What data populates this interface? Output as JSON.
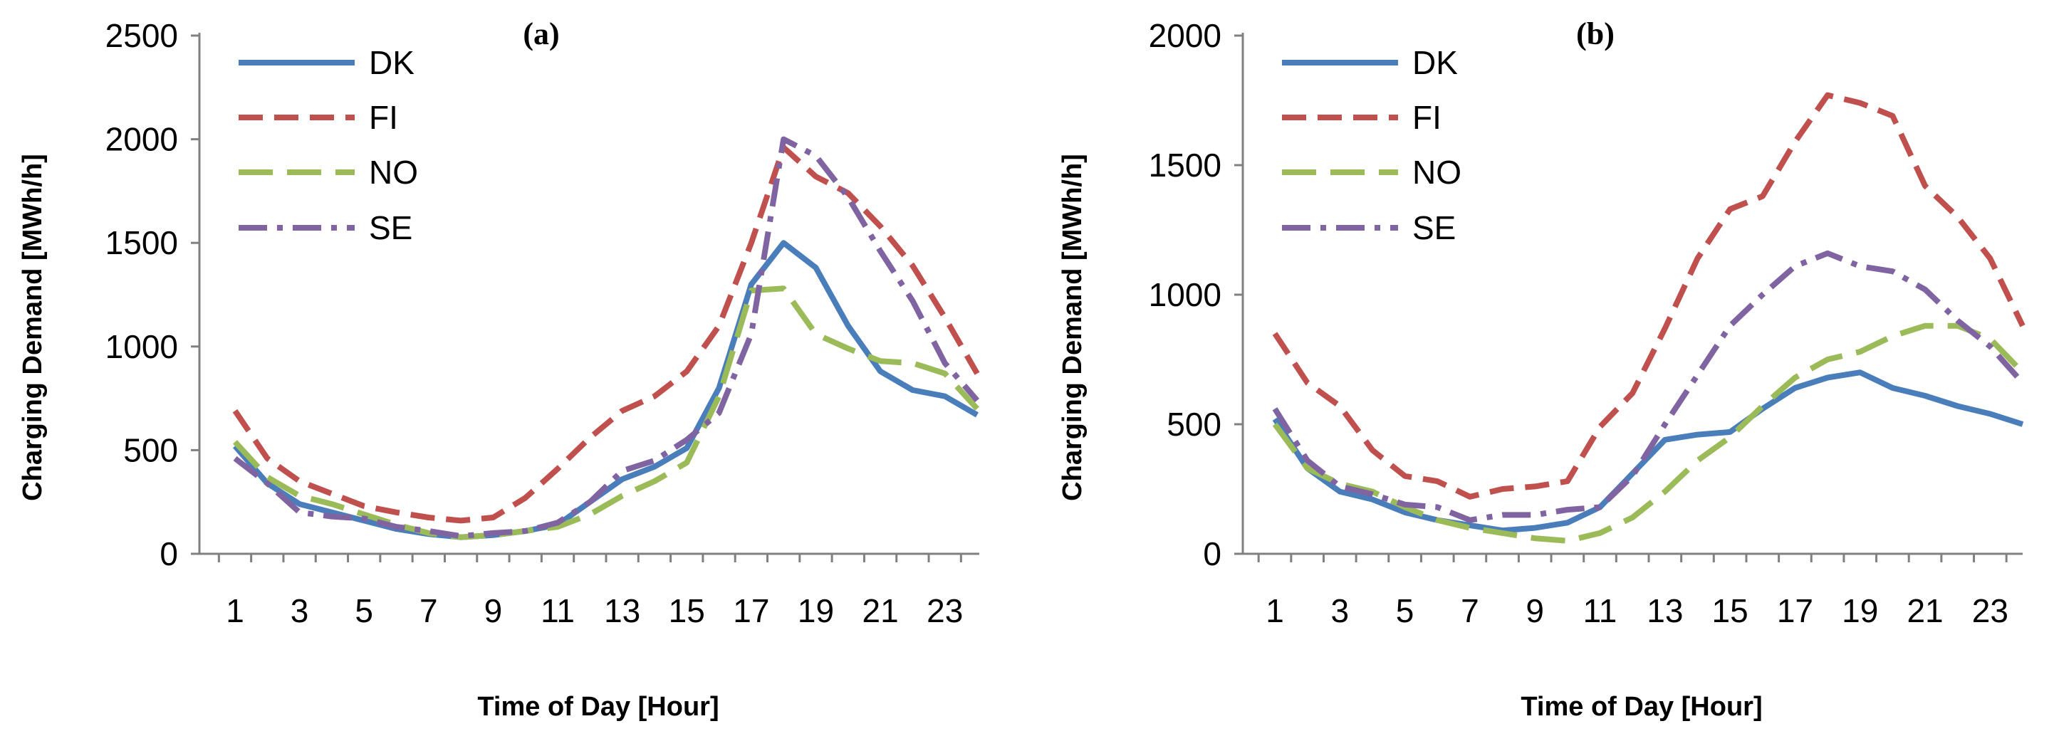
{
  "chart_data": [
    {
      "type": "line",
      "title": "(a)",
      "xlabel": "Time of Day [Hour]",
      "ylabel": "Charging Demand [MWh/h]",
      "ylim": [
        0,
        2500
      ],
      "yticks": [
        0,
        500,
        1000,
        1500,
        2000,
        2500
      ],
      "xlim": [
        1,
        24
      ],
      "xticks": [
        1,
        3,
        5,
        7,
        9,
        11,
        13,
        15,
        17,
        19,
        21,
        23
      ],
      "x": [
        1,
        2,
        3,
        4,
        5,
        6,
        7,
        8,
        9,
        10,
        11,
        12,
        13,
        14,
        15,
        16,
        17,
        18,
        19,
        20,
        21,
        22,
        23,
        24
      ],
      "legend_position": "top-left",
      "series": [
        {
          "name": "DK",
          "color": "#4a7ebb",
          "dash": "solid",
          "values": [
            520,
            340,
            240,
            200,
            160,
            120,
            95,
            80,
            90,
            110,
            140,
            250,
            360,
            420,
            510,
            800,
            1300,
            1500,
            1380,
            1100,
            880,
            790,
            760,
            670
          ]
        },
        {
          "name": "FI",
          "color": "#c0504d",
          "dash": "dash",
          "values": [
            690,
            460,
            350,
            290,
            230,
            200,
            175,
            160,
            175,
            270,
            410,
            560,
            690,
            760,
            880,
            1100,
            1500,
            1960,
            1820,
            1740,
            1580,
            1390,
            1140,
            870
          ]
        },
        {
          "name": "NO",
          "color": "#9bbb59",
          "dash": "longdash",
          "values": [
            540,
            370,
            280,
            240,
            190,
            140,
            100,
            80,
            90,
            110,
            130,
            190,
            280,
            350,
            440,
            760,
            1270,
            1280,
            1060,
            990,
            930,
            920,
            870,
            700
          ]
        },
        {
          "name": "SE",
          "color": "#8064a2",
          "dash": "dashdot",
          "values": [
            460,
            340,
            200,
            180,
            170,
            130,
            110,
            85,
            100,
            110,
            150,
            250,
            400,
            450,
            550,
            680,
            1060,
            2000,
            1920,
            1720,
            1460,
            1220,
            920,
            740
          ]
        }
      ]
    },
    {
      "type": "line",
      "title": "(b)",
      "xlabel": "Time of Day [Hour]",
      "ylabel": "Charging Demand [MWh/h]",
      "ylim": [
        0,
        2000
      ],
      "yticks": [
        0,
        500,
        1000,
        1500,
        2000
      ],
      "xlim": [
        1,
        24
      ],
      "xticks": [
        1,
        3,
        5,
        7,
        9,
        11,
        13,
        15,
        17,
        19,
        21,
        23
      ],
      "x": [
        1,
        2,
        3,
        4,
        5,
        6,
        7,
        8,
        9,
        10,
        11,
        12,
        13,
        14,
        15,
        16,
        17,
        18,
        19,
        20,
        21,
        22,
        23,
        24
      ],
      "legend_position": "top-left",
      "series": [
        {
          "name": "DK",
          "color": "#4a7ebb",
          "dash": "solid",
          "values": [
            520,
            330,
            240,
            210,
            160,
            130,
            110,
            90,
            100,
            120,
            180,
            310,
            440,
            460,
            470,
            560,
            640,
            680,
            700,
            640,
            610,
            570,
            540,
            500
          ]
        },
        {
          "name": "FI",
          "color": "#c0504d",
          "dash": "dash",
          "values": [
            850,
            660,
            570,
            400,
            300,
            280,
            220,
            250,
            260,
            280,
            490,
            620,
            870,
            1140,
            1330,
            1380,
            1590,
            1770,
            1740,
            1690,
            1420,
            1300,
            1140,
            880
          ]
        },
        {
          "name": "NO",
          "color": "#9bbb59",
          "dash": "longdash",
          "values": [
            500,
            330,
            270,
            240,
            180,
            130,
            100,
            80,
            60,
            50,
            80,
            140,
            240,
            360,
            450,
            570,
            680,
            750,
            780,
            840,
            880,
            880,
            830,
            700
          ]
        },
        {
          "name": "SE",
          "color": "#8064a2",
          "dash": "dashdot",
          "values": [
            560,
            360,
            260,
            230,
            190,
            180,
            130,
            150,
            150,
            170,
            180,
            300,
            500,
            690,
            880,
            1000,
            1110,
            1160,
            1110,
            1090,
            1020,
            900,
            800,
            660
          ]
        }
      ]
    }
  ]
}
